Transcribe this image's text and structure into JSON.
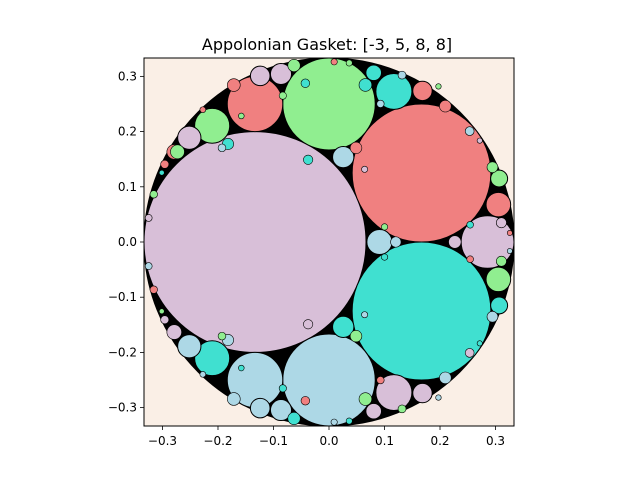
{
  "chart_data": {
    "type": "scatter",
    "title": "Appolonian Gasket: [-3, 5, 8, 8]",
    "xlabel": "",
    "ylabel": "",
    "xlim": [
      -0.3333,
      0.3333
    ],
    "ylim": [
      -0.3333,
      0.3333
    ],
    "x_ticks": [
      -0.3,
      -0.2,
      -0.1,
      0.0,
      0.1,
      0.2,
      0.3
    ],
    "x_tick_labels": [
      "−0.3",
      "−0.2",
      "−0.1",
      "0.0",
      "0.1",
      "0.2",
      "0.3"
    ],
    "y_ticks": [
      0.3,
      0.2,
      0.1,
      0.0,
      -0.1,
      -0.2,
      -0.3
    ],
    "y_tick_labels": [
      "0.3",
      "0.2",
      "0.1",
      "0.0",
      "−0.1",
      "−0.2",
      "−0.3"
    ],
    "grid": false,
    "colors": {
      "background": "#faefe6",
      "outer_disk": "#000000",
      "thistle": "#d8bfd8",
      "lightcoral": "#f08080",
      "lightgreen": "#90ee90",
      "turquoise": "#40e0d0",
      "lightblue": "#add8e6"
    },
    "outer_circle": {
      "cx": 0.0,
      "cy": 0.0,
      "r": 0.3333
    },
    "circles": [
      {
        "cx": -0.1333,
        "cy": 0.0,
        "r": 0.2,
        "color": "thistle"
      },
      {
        "cx": 0.1667,
        "cy": 0.125,
        "r": 0.125,
        "color": "lightcoral"
      },
      {
        "cx": 0.1667,
        "cy": -0.125,
        "r": 0.125,
        "color": "turquoise"
      },
      {
        "cx": 0.0,
        "cy": 0.25,
        "r": 0.0833,
        "color": "lightgreen"
      },
      {
        "cx": 0.0,
        "cy": -0.25,
        "r": 0.0833,
        "color": "lightblue"
      },
      {
        "cx": 0.2857,
        "cy": 0.0,
        "r": 0.0476,
        "color": "thistle"
      },
      {
        "cx": -0.1333,
        "cy": 0.25,
        "r": 0.05,
        "color": "lightcoral"
      },
      {
        "cx": -0.1333,
        "cy": -0.25,
        "r": 0.05,
        "color": "lightblue"
      },
      {
        "cx": 0.1169,
        "cy": 0.2727,
        "r": 0.0325,
        "color": "turquoise"
      },
      {
        "cx": 0.1169,
        "cy": -0.2727,
        "r": 0.0325,
        "color": "thistle"
      },
      {
        "cx": -0.2105,
        "cy": 0.2105,
        "r": 0.0316,
        "color": "lightgreen"
      },
      {
        "cx": -0.2105,
        "cy": -0.2105,
        "r": 0.0316,
        "color": "turquoise"
      },
      {
        "cx": 0.3051,
        "cy": 0.0678,
        "r": 0.0222,
        "color": "lightcoral"
      },
      {
        "cx": 0.3051,
        "cy": -0.0678,
        "r": 0.0222,
        "color": "lightgreen"
      },
      {
        "cx": 0.0909,
        "cy": 0.0,
        "r": 0.0227,
        "color": "lightblue"
      },
      {
        "cx": 0.0256,
        "cy": 0.1538,
        "r": 0.0192,
        "color": "lightblue"
      },
      {
        "cx": 0.0256,
        "cy": -0.1538,
        "r": 0.0192,
        "color": "turquoise"
      },
      {
        "cx": -0.1239,
        "cy": 0.3009,
        "r": 0.0177,
        "color": "thistle"
      },
      {
        "cx": -0.1239,
        "cy": -0.3009,
        "r": 0.0177,
        "color": "lightblue"
      },
      {
        "cx": -0.0865,
        "cy": 0.3044,
        "r": 0.019,
        "color": "thistle"
      },
      {
        "cx": -0.0865,
        "cy": -0.3044,
        "r": 0.019,
        "color": "lightblue"
      },
      {
        "cx": -0.2517,
        "cy": 0.1888,
        "r": 0.021,
        "color": "thistle"
      },
      {
        "cx": -0.2517,
        "cy": -0.1888,
        "r": 0.021,
        "color": "lightblue"
      },
      {
        "cx": 0.1684,
        "cy": 0.2737,
        "r": 0.0175,
        "color": "lightcoral"
      },
      {
        "cx": 0.1684,
        "cy": -0.2737,
        "r": 0.0175,
        "color": "thistle"
      },
      {
        "cx": 0.0805,
        "cy": 0.3065,
        "r": 0.0138,
        "color": "turquoise"
      },
      {
        "cx": 0.0805,
        "cy": -0.3065,
        "r": 0.0138,
        "color": "thistle"
      },
      {
        "cx": 0.3065,
        "cy": 0.1149,
        "r": 0.0153,
        "color": "lightgreen"
      },
      {
        "cx": 0.3065,
        "cy": -0.1149,
        "r": 0.0153,
        "color": "turquoise"
      },
      {
        "cx": -0.2788,
        "cy": 0.1632,
        "r": 0.0133,
        "color": "lightcoral"
      },
      {
        "cx": -0.2788,
        "cy": -0.1632,
        "r": 0.0133,
        "color": "thistle"
      },
      {
        "cx": -0.273,
        "cy": 0.1634,
        "r": 0.0126,
        "color": "lightgreen"
      },
      {
        "cx": -0.182,
        "cy": 0.1776,
        "r": 0.0102,
        "color": "turquoise"
      },
      {
        "cx": -0.182,
        "cy": -0.1776,
        "r": 0.0102,
        "color": "lightblue"
      },
      {
        "cx": 0.0487,
        "cy": 0.1705,
        "r": 0.0105,
        "color": "lightcoral"
      },
      {
        "cx": 0.0487,
        "cy": -0.1705,
        "r": 0.0105,
        "color": "lightgreen"
      },
      {
        "cx": 0.2267,
        "cy": 0.0,
        "r": 0.0113,
        "color": "thistle"
      },
      {
        "cx": -0.1715,
        "cy": 0.2843,
        "r": 0.0116,
        "color": "lightcoral"
      },
      {
        "cx": -0.1715,
        "cy": -0.2843,
        "r": 0.0116,
        "color": "lightblue"
      },
      {
        "cx": 0.0656,
        "cy": 0.2845,
        "r": 0.0115,
        "color": "turquoise"
      },
      {
        "cx": 0.0656,
        "cy": -0.2845,
        "r": 0.0115,
        "color": "lightgreen"
      },
      {
        "cx": -0.063,
        "cy": 0.3197,
        "r": 0.0112,
        "color": "lightgreen"
      },
      {
        "cx": -0.063,
        "cy": -0.3197,
        "r": 0.0112,
        "color": "turquoise"
      },
      {
        "cx": 0.2096,
        "cy": 0.2461,
        "r": 0.0106,
        "color": "lightcoral"
      },
      {
        "cx": 0.2096,
        "cy": -0.2461,
        "r": 0.0106,
        "color": "lightblue"
      },
      {
        "cx": 0.2945,
        "cy": 0.1354,
        "r": 0.0098,
        "color": "lightgreen"
      },
      {
        "cx": 0.2945,
        "cy": -0.1354,
        "r": 0.0098,
        "color": "lightblue"
      },
      {
        "cx": 0.3106,
        "cy": 0.0349,
        "r": 0.0092,
        "color": "thistle"
      },
      {
        "cx": 0.3106,
        "cy": -0.0349,
        "r": 0.0092,
        "color": "lightgreen"
      },
      {
        "cx": 0.1204,
        "cy": 0.0,
        "r": 0.0095,
        "color": "lightblue"
      },
      {
        "cx": -0.0376,
        "cy": 0.149,
        "r": 0.0085,
        "color": "turquoise"
      },
      {
        "cx": -0.0376,
        "cy": -0.149,
        "r": 0.0085,
        "color": "thistle"
      },
      {
        "cx": -0.2959,
        "cy": 0.1408,
        "r": 0.0074,
        "color": "lightcoral"
      },
      {
        "cx": -0.2959,
        "cy": -0.1408,
        "r": 0.0074,
        "color": "thistle"
      },
      {
        "cx": -0.1928,
        "cy": 0.1705,
        "r": 0.007,
        "color": "lightblue"
      },
      {
        "cx": -0.1928,
        "cy": -0.1705,
        "r": 0.007,
        "color": "lightgreen"
      },
      {
        "cx": 0.1316,
        "cy": 0.3023,
        "r": 0.0072,
        "color": "lightblue"
      },
      {
        "cx": 0.1316,
        "cy": -0.3023,
        "r": 0.0072,
        "color": "lightgreen"
      },
      {
        "cx": -0.0426,
        "cy": 0.2875,
        "r": 0.0078,
        "color": "turquoise"
      },
      {
        "cx": -0.0426,
        "cy": -0.2875,
        "r": 0.0078,
        "color": "lightcoral"
      },
      {
        "cx": 0.2534,
        "cy": 0.2008,
        "r": 0.008,
        "color": "lightblue"
      },
      {
        "cx": 0.2534,
        "cy": -0.2008,
        "r": 0.008,
        "color": "thistle"
      },
      {
        "cx": -0.3157,
        "cy": 0.0863,
        "r": 0.0068,
        "color": "lightgreen"
      },
      {
        "cx": -0.3157,
        "cy": -0.0863,
        "r": 0.0068,
        "color": "lightcoral"
      },
      {
        "cx": -0.3249,
        "cy": 0.0436,
        "r": 0.0063,
        "color": "thistle"
      },
      {
        "cx": -0.3249,
        "cy": -0.0436,
        "r": 0.0063,
        "color": "lightblue"
      },
      {
        "cx": 0.0927,
        "cy": 0.2502,
        "r": 0.0067,
        "color": "lightblue"
      },
      {
        "cx": 0.0927,
        "cy": -0.2502,
        "r": 0.0067,
        "color": "lightcoral"
      },
      {
        "cx": -0.0832,
        "cy": 0.2651,
        "r": 0.0066,
        "color": "lightgreen"
      },
      {
        "cx": -0.0832,
        "cy": -0.2651,
        "r": 0.0066,
        "color": "turquoise"
      },
      {
        "cx": 0.2543,
        "cy": 0.0312,
        "r": 0.0061,
        "color": "turquoise"
      },
      {
        "cx": 0.2543,
        "cy": -0.0312,
        "r": 0.0061,
        "color": "lightcoral"
      },
      {
        "cx": 0.0642,
        "cy": 0.1317,
        "r": 0.0056,
        "color": "thistle"
      },
      {
        "cx": 0.0642,
        "cy": -0.1317,
        "r": 0.0056,
        "color": "lightblue"
      },
      {
        "cx": 0.1001,
        "cy": 0.0273,
        "r": 0.0058,
        "color": "lightgreen"
      },
      {
        "cx": 0.1001,
        "cy": -0.0273,
        "r": 0.0058,
        "color": "turquoise"
      },
      {
        "cx": 0.0093,
        "cy": 0.3263,
        "r": 0.0057,
        "color": "lightcoral"
      },
      {
        "cx": 0.0093,
        "cy": -0.3263,
        "r": 0.0057,
        "color": "lightblue"
      },
      {
        "cx": 0.0364,
        "cy": 0.3243,
        "r": 0.0056,
        "color": "lightgreen"
      },
      {
        "cx": 0.0364,
        "cy": -0.3243,
        "r": 0.0056,
        "color": "turquoise"
      },
      {
        "cx": -0.2273,
        "cy": 0.2397,
        "r": 0.0053,
        "color": "lightcoral"
      },
      {
        "cx": -0.2273,
        "cy": -0.2397,
        "r": 0.0053,
        "color": "lightblue"
      },
      {
        "cx": -0.158,
        "cy": 0.2283,
        "r": 0.0052,
        "color": "lightgreen"
      },
      {
        "cx": -0.158,
        "cy": -0.2283,
        "r": 0.0052,
        "color": "turquoise"
      },
      {
        "cx": 0.1972,
        "cy": 0.2818,
        "r": 0.005,
        "color": "lightgreen"
      },
      {
        "cx": 0.1972,
        "cy": -0.2818,
        "r": 0.005,
        "color": "lightblue"
      },
      {
        "cx": 0.2716,
        "cy": 0.1836,
        "r": 0.0048,
        "color": "thistle"
      },
      {
        "cx": 0.2716,
        "cy": -0.1836,
        "r": 0.0048,
        "color": "turquoise"
      },
      {
        "cx": 0.3258,
        "cy": 0.0164,
        "r": 0.0047,
        "color": "lightcoral"
      },
      {
        "cx": 0.3258,
        "cy": -0.0164,
        "r": 0.0047,
        "color": "lightblue"
      },
      {
        "cx": -0.3013,
        "cy": 0.1255,
        "r": 0.0046,
        "color": "turquoise"
      },
      {
        "cx": -0.3013,
        "cy": -0.1255,
        "r": 0.0046,
        "color": "lightgreen"
      }
    ]
  }
}
